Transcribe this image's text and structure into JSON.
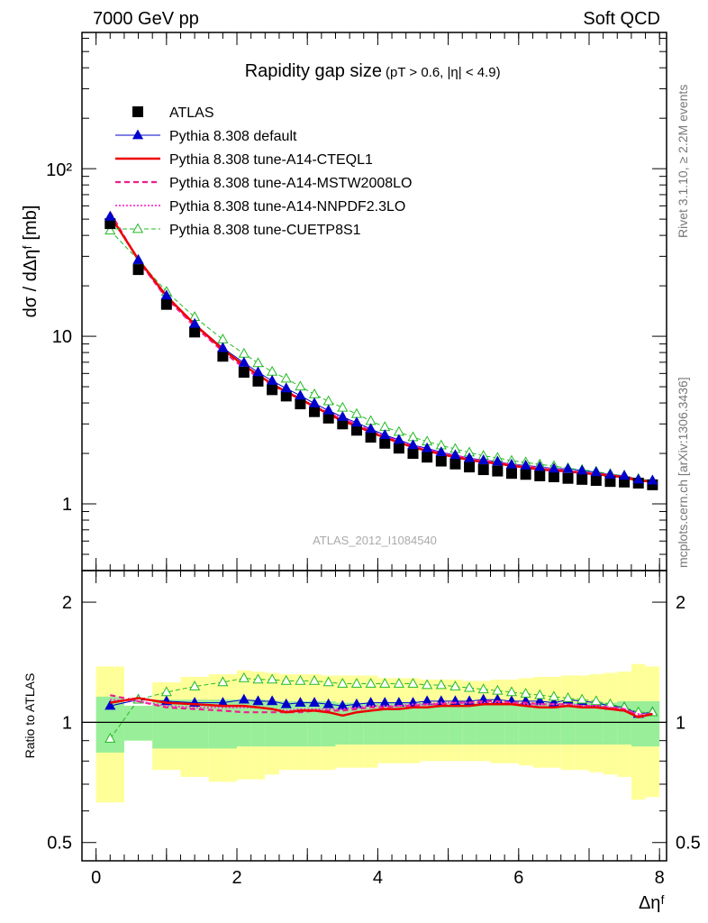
{
  "header": {
    "left": "7000 GeV pp",
    "right": "Soft QCD"
  },
  "side_labels": {
    "rivet": "Rivet 3.1.10, ≥ 2.2M events",
    "mcplots": "mcplots.cern.ch [arXiv:1306.3436]"
  },
  "chart_data": {
    "type": "scatter",
    "title": "Rapidity gap size",
    "subtitle": "(pT > 0.6, |η| < 4.9)",
    "watermark": "ATLAS_2012_I1084540",
    "xlabel": "Δηᶠ",
    "ylabel": "dσ / dΔηᶠ [mb]",
    "ratio_ylabel": "Ratio to ATLAS",
    "xlim": [
      -0.2,
      8.1
    ],
    "ylim": [
      0.4,
      650
    ],
    "yscale": "log",
    "ratio_ylim": [
      0.45,
      2.4
    ],
    "ratio_yscale": "log",
    "x_ticks": [
      "0",
      "2",
      "4",
      "6",
      "8"
    ],
    "y_ticks": [
      "1",
      "10",
      "10²"
    ],
    "ratio_ticks": [
      "0.5",
      "1",
      "2"
    ],
    "x": [
      0.2,
      0.6,
      1.0,
      1.4,
      1.8,
      2.1,
      2.3,
      2.5,
      2.7,
      2.9,
      3.1,
      3.3,
      3.5,
      3.7,
      3.9,
      4.1,
      4.3,
      4.5,
      4.7,
      4.9,
      5.1,
      5.3,
      5.5,
      5.7,
      5.9,
      6.1,
      6.3,
      6.5,
      6.7,
      6.9,
      7.1,
      7.3,
      7.5,
      7.7,
      7.9
    ],
    "bands": {
      "edges": [
        0.0,
        0.4,
        0.8,
        1.2,
        1.6,
        2.0,
        2.2,
        2.4,
        2.6,
        2.8,
        3.0,
        3.2,
        3.4,
        3.6,
        3.8,
        4.0,
        4.2,
        4.4,
        4.6,
        4.8,
        5.0,
        5.2,
        5.4,
        5.6,
        5.8,
        6.0,
        6.2,
        6.4,
        6.6,
        6.8,
        7.0,
        7.2,
        7.4,
        7.6,
        7.8,
        8.0
      ],
      "stat_lo": [
        0.84,
        0.9,
        0.86,
        0.86,
        0.86,
        0.87,
        0.87,
        0.87,
        0.87,
        0.87,
        0.87,
        0.87,
        0.88,
        0.88,
        0.88,
        0.88,
        0.88,
        0.88,
        0.88,
        0.88,
        0.88,
        0.88,
        0.88,
        0.88,
        0.88,
        0.88,
        0.88,
        0.88,
        0.88,
        0.88,
        0.88,
        0.88,
        0.88,
        0.87,
        0.87
      ],
      "stat_hi": [
        1.16,
        1.1,
        1.14,
        1.14,
        1.14,
        1.14,
        1.14,
        1.13,
        1.13,
        1.13,
        1.13,
        1.13,
        1.12,
        1.12,
        1.12,
        1.12,
        1.12,
        1.12,
        1.12,
        1.12,
        1.12,
        1.12,
        1.12,
        1.12,
        1.12,
        1.12,
        1.12,
        1.12,
        1.12,
        1.12,
        1.12,
        1.12,
        1.13,
        1.13,
        1.13
      ],
      "tot_lo": [
        0.63,
        0.9,
        0.76,
        0.73,
        0.71,
        0.72,
        0.72,
        0.74,
        0.76,
        0.76,
        0.76,
        0.76,
        0.77,
        0.77,
        0.77,
        0.79,
        0.79,
        0.79,
        0.8,
        0.8,
        0.8,
        0.8,
        0.8,
        0.79,
        0.79,
        0.78,
        0.77,
        0.77,
        0.76,
        0.76,
        0.75,
        0.74,
        0.73,
        0.64,
        0.65
      ],
      "tot_hi": [
        1.38,
        1.1,
        1.26,
        1.3,
        1.32,
        1.35,
        1.34,
        1.33,
        1.32,
        1.32,
        1.32,
        1.31,
        1.31,
        1.31,
        1.31,
        1.29,
        1.29,
        1.29,
        1.28,
        1.28,
        1.28,
        1.27,
        1.27,
        1.28,
        1.28,
        1.29,
        1.3,
        1.3,
        1.31,
        1.31,
        1.32,
        1.33,
        1.34,
        1.4,
        1.38
      ]
    },
    "series": [
      {
        "name": "ATLAS",
        "color": "#000000",
        "style": "data",
        "values": [
          47,
          25,
          15.5,
          10.6,
          7.6,
          6.1,
          5.4,
          4.8,
          4.4,
          3.95,
          3.55,
          3.25,
          3.0,
          2.75,
          2.5,
          2.3,
          2.15,
          2.0,
          1.9,
          1.8,
          1.73,
          1.66,
          1.6,
          1.57,
          1.52,
          1.5,
          1.47,
          1.45,
          1.42,
          1.4,
          1.38,
          1.36,
          1.35,
          1.33,
          1.3
        ]
      },
      {
        "name": "Pythia 8.308 default",
        "color": "#0000cc",
        "style": "blue",
        "ratio": [
          1.1,
          1.14,
          1.13,
          1.12,
          1.12,
          1.14,
          1.13,
          1.13,
          1.11,
          1.12,
          1.12,
          1.11,
          1.1,
          1.11,
          1.12,
          1.12,
          1.12,
          1.12,
          1.13,
          1.13,
          1.13,
          1.13,
          1.14,
          1.14,
          1.13,
          1.13,
          1.13,
          1.12,
          1.14,
          1.13,
          1.12,
          1.1,
          1.09,
          1.05,
          1.06
        ]
      },
      {
        "name": "Pythia 8.308 tune-A14-CTEQL1",
        "color": "#ee0000",
        "style": "red",
        "ratio": [
          1.12,
          1.15,
          1.12,
          1.11,
          1.1,
          1.1,
          1.09,
          1.08,
          1.06,
          1.07,
          1.07,
          1.06,
          1.04,
          1.06,
          1.07,
          1.08,
          1.08,
          1.09,
          1.09,
          1.1,
          1.1,
          1.1,
          1.11,
          1.11,
          1.11,
          1.1,
          1.09,
          1.09,
          1.1,
          1.09,
          1.09,
          1.08,
          1.07,
          1.03,
          1.05
        ]
      },
      {
        "name": "Pythia 8.308 tune-A14-MSTW2008LO",
        "color": "#ee1e8c",
        "style": "pink-dash",
        "ratio": [
          1.17,
          1.13,
          1.09,
          1.08,
          1.07,
          1.06,
          1.06,
          1.06,
          1.06,
          1.06,
          1.07,
          1.07,
          1.07,
          1.08,
          1.09,
          1.09,
          1.1,
          1.1,
          1.11,
          1.11,
          1.12,
          1.12,
          1.13,
          1.13,
          1.12,
          1.12,
          1.11,
          1.11,
          1.11,
          1.1,
          1.1,
          1.09,
          1.08,
          1.04,
          1.05
        ]
      },
      {
        "name": "Pythia 8.308 tune-A14-NNPDF2.3LO",
        "color": "#ff33cc",
        "style": "pink-dot",
        "ratio": [
          1.14,
          1.13,
          1.1,
          1.09,
          1.09,
          1.09,
          1.09,
          1.08,
          1.07,
          1.08,
          1.08,
          1.08,
          1.08,
          1.09,
          1.1,
          1.1,
          1.1,
          1.11,
          1.11,
          1.12,
          1.12,
          1.12,
          1.12,
          1.12,
          1.12,
          1.11,
          1.11,
          1.11,
          1.11,
          1.1,
          1.1,
          1.09,
          1.08,
          1.05,
          1.05
        ]
      },
      {
        "name": "Pythia 8.308 tune-CUETP8S1",
        "color": "#22bb22",
        "style": "green",
        "ratio": [
          0.91,
          1.14,
          1.19,
          1.23,
          1.26,
          1.29,
          1.28,
          1.28,
          1.27,
          1.27,
          1.27,
          1.26,
          1.25,
          1.25,
          1.25,
          1.25,
          1.25,
          1.25,
          1.24,
          1.24,
          1.23,
          1.22,
          1.21,
          1.2,
          1.19,
          1.18,
          1.17,
          1.16,
          1.15,
          1.14,
          1.13,
          1.11,
          1.09,
          1.06,
          1.06
        ]
      }
    ]
  }
}
